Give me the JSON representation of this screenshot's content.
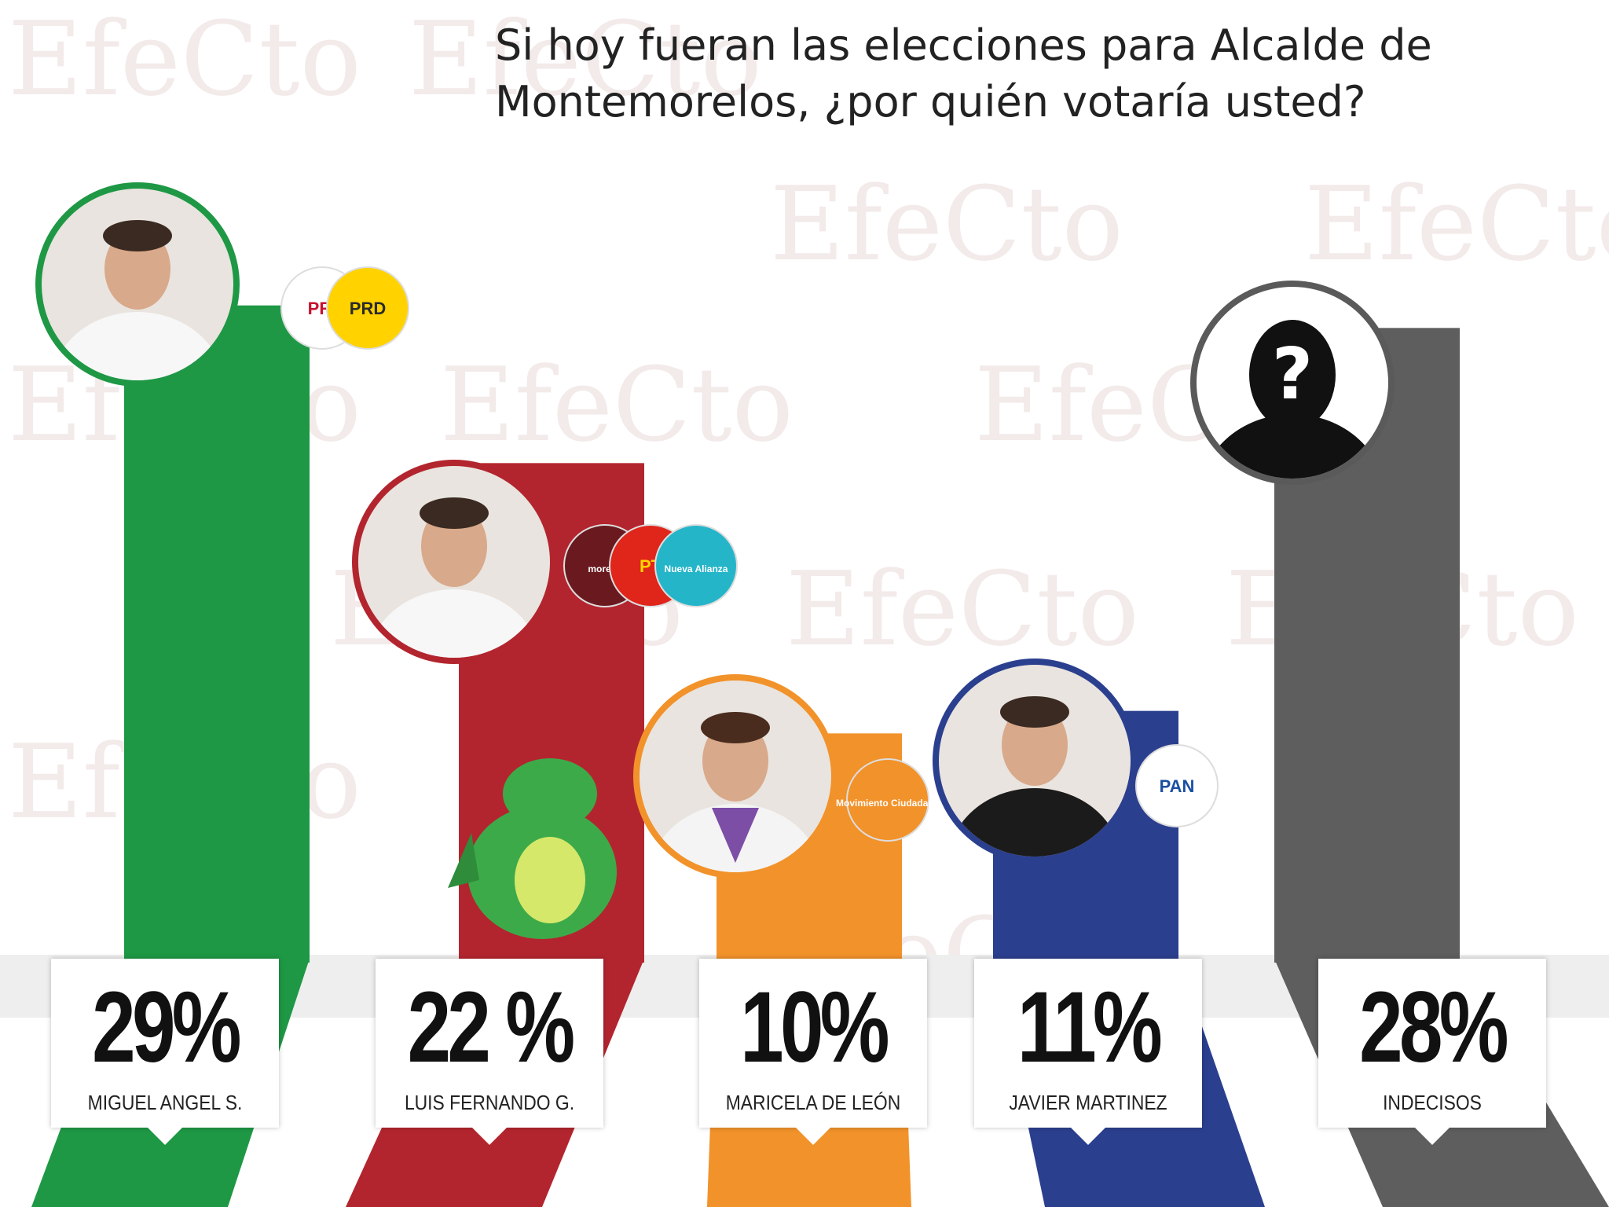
{
  "chart_data": {
    "type": "bar",
    "title_lines": [
      "Si hoy fueran las elecciones para Alcalde de",
      "Montemorelos, ¿por quién votaría usted?"
    ],
    "categories": [
      "MIGUEL ANGEL S.",
      "LUIS FERNANDO G.",
      "MARICELA DE LEÓN",
      "JAVIER MARTINEZ",
      "INDECISOS"
    ],
    "values": [
      29,
      22,
      10,
      11,
      28
    ],
    "value_labels": [
      "29%",
      "22 %",
      "10%",
      "11%",
      "28%"
    ],
    "unit": "%",
    "ylim": [
      0,
      30
    ],
    "colors": [
      "#1e9845",
      "#b3252e",
      "#f2922a",
      "#2b3f8f",
      "#5e5e5e"
    ],
    "party_labels": [
      [
        "PRI",
        "PRD"
      ],
      [
        "morena",
        "PT",
        "Nueva Alianza"
      ],
      [
        "Movimiento Ciudadano"
      ],
      [
        "PAN"
      ],
      []
    ],
    "grid": false,
    "legend": "none"
  },
  "watermark": "EfeCto",
  "icons": {
    "candidate_photo": "person-photo-icon",
    "undecided": "question-silhouette-icon",
    "mascot": "dragon-mascot-icon",
    "party_logo": "party-logo-icon"
  }
}
